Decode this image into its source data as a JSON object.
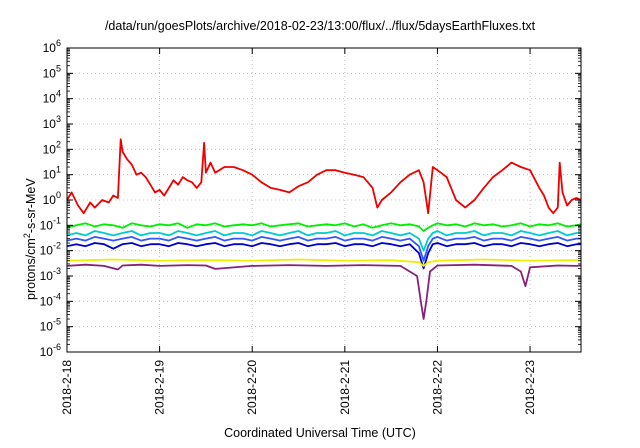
{
  "chart_data": {
    "type": "line",
    "title": "/data/run/goesPlots/archive/2018-02-23/13:00/flux/../flux/5daysEarthFluxes.txt",
    "xlabel": "Coordinated Universal Time (UTC)",
    "ylabel": {
      "prefix": "protons/cm",
      "sup": "2",
      "suffix": "-s-sr-MeV"
    },
    "x_ticks": [
      "2018-2-18",
      "2018-2-19",
      "2018-2-20",
      "2018-2-21",
      "2018-2-22",
      "2018-2-23"
    ],
    "x_range_days": [
      0,
      5.55
    ],
    "y_scale": "log",
    "ylim": [
      1e-06,
      1000000.0
    ],
    "y_ticks": [
      {
        "base": "10",
        "exp": "-6"
      },
      {
        "base": "10",
        "exp": "-5"
      },
      {
        "base": "10",
        "exp": "-4"
      },
      {
        "base": "10",
        "exp": "-3"
      },
      {
        "base": "10",
        "exp": "-2"
      },
      {
        "base": "10",
        "exp": "-1"
      },
      {
        "base": "10",
        "exp": "0"
      },
      {
        "base": "10",
        "exp": "1"
      },
      {
        "base": "10",
        "exp": "2"
      },
      {
        "base": "10",
        "exp": "3"
      },
      {
        "base": "10",
        "exp": "4"
      },
      {
        "base": "10",
        "exp": "5"
      },
      {
        "base": "10",
        "exp": "6"
      }
    ],
    "grid": true,
    "series": [
      {
        "color": "#ee0000",
        "x": [
          0,
          0.05,
          0.12,
          0.18,
          0.25,
          0.3,
          0.38,
          0.45,
          0.5,
          0.55,
          0.58,
          0.6,
          0.65,
          0.7,
          0.75,
          0.8,
          0.85,
          0.9,
          0.95,
          1.0,
          1.05,
          1.1,
          1.15,
          1.2,
          1.25,
          1.3,
          1.35,
          1.4,
          1.45,
          1.48,
          1.5,
          1.55,
          1.6,
          1.7,
          1.8,
          1.9,
          2.0,
          2.1,
          2.2,
          2.3,
          2.4,
          2.5,
          2.6,
          2.7,
          2.8,
          2.9,
          3.0,
          3.1,
          3.2,
          3.3,
          3.35,
          3.4,
          3.5,
          3.6,
          3.7,
          3.8,
          3.85,
          3.9,
          3.95,
          4.0,
          4.1,
          4.2,
          4.3,
          4.4,
          4.5,
          4.6,
          4.7,
          4.8,
          4.9,
          5.0,
          5.1,
          5.15,
          5.2,
          5.25,
          5.3,
          5.32,
          5.35,
          5.4,
          5.45,
          5.5,
          5.55
        ],
        "y": [
          1,
          2,
          0.6,
          0.3,
          0.8,
          0.5,
          1.0,
          0.8,
          1.5,
          1.2,
          250,
          80,
          40,
          25,
          10,
          12,
          8,
          4,
          2,
          2.5,
          1.5,
          3,
          6,
          4,
          8,
          6,
          5,
          3,
          5,
          180,
          12,
          30,
          12,
          20,
          20,
          15,
          10,
          5,
          3,
          2.5,
          2,
          3.5,
          5,
          10,
          15,
          15,
          12,
          10,
          8,
          3,
          0.5,
          1,
          2,
          5,
          10,
          15,
          5,
          0.3,
          20,
          15,
          8,
          1,
          0.5,
          1,
          3,
          8,
          15,
          30,
          20,
          15,
          3,
          1.5,
          0.5,
          0.3,
          0.5,
          30,
          2,
          0.6,
          1,
          1.2,
          1
        ]
      },
      {
        "color": "#00ee00",
        "x": [
          0,
          0.1,
          0.2,
          0.3,
          0.4,
          0.5,
          0.6,
          0.7,
          0.8,
          0.9,
          1.0,
          1.1,
          1.2,
          1.3,
          1.4,
          1.5,
          1.6,
          1.7,
          1.8,
          1.9,
          2.0,
          2.1,
          2.2,
          2.3,
          2.4,
          2.5,
          2.6,
          2.7,
          2.8,
          2.9,
          3.0,
          3.1,
          3.2,
          3.3,
          3.4,
          3.5,
          3.6,
          3.7,
          3.8,
          3.85,
          3.9,
          3.95,
          4.0,
          4.1,
          4.2,
          4.3,
          4.4,
          4.5,
          4.6,
          4.7,
          4.8,
          4.9,
          5.0,
          5.1,
          5.2,
          5.3,
          5.4,
          5.5,
          5.55
        ],
        "y": [
          0.08,
          0.1,
          0.12,
          0.09,
          0.11,
          0.1,
          0.08,
          0.12,
          0.1,
          0.09,
          0.11,
          0.1,
          0.12,
          0.08,
          0.11,
          0.1,
          0.12,
          0.09,
          0.1,
          0.11,
          0.1,
          0.12,
          0.09,
          0.1,
          0.11,
          0.12,
          0.09,
          0.1,
          0.11,
          0.1,
          0.12,
          0.09,
          0.11,
          0.08,
          0.1,
          0.12,
          0.1,
          0.11,
          0.09,
          0.06,
          0.08,
          0.1,
          0.12,
          0.1,
          0.11,
          0.09,
          0.12,
          0.1,
          0.11,
          0.09,
          0.1,
          0.12,
          0.09,
          0.11,
          0.1,
          0.12,
          0.09,
          0.1,
          0.11
        ]
      },
      {
        "color": "#00cccc",
        "x": [
          0,
          0.1,
          0.2,
          0.3,
          0.4,
          0.5,
          0.6,
          0.7,
          0.8,
          0.9,
          1.0,
          1.1,
          1.2,
          1.3,
          1.4,
          1.5,
          1.6,
          1.7,
          1.8,
          1.9,
          2.0,
          2.1,
          2.2,
          2.3,
          2.4,
          2.5,
          2.6,
          2.7,
          2.8,
          2.9,
          3.0,
          3.1,
          3.2,
          3.3,
          3.4,
          3.5,
          3.6,
          3.7,
          3.8,
          3.85,
          3.9,
          3.95,
          4.0,
          4.1,
          4.2,
          4.3,
          4.4,
          4.5,
          4.6,
          4.7,
          4.8,
          4.9,
          5.0,
          5.1,
          5.2,
          5.3,
          5.4,
          5.5,
          5.55
        ],
        "y": [
          0.04,
          0.05,
          0.04,
          0.06,
          0.05,
          0.04,
          0.05,
          0.06,
          0.04,
          0.05,
          0.05,
          0.04,
          0.06,
          0.05,
          0.04,
          0.05,
          0.06,
          0.04,
          0.05,
          0.05,
          0.04,
          0.06,
          0.05,
          0.04,
          0.05,
          0.06,
          0.04,
          0.05,
          0.05,
          0.06,
          0.04,
          0.05,
          0.05,
          0.04,
          0.06,
          0.05,
          0.04,
          0.05,
          0.03,
          0.01,
          0.03,
          0.05,
          0.06,
          0.04,
          0.05,
          0.05,
          0.06,
          0.04,
          0.05,
          0.05,
          0.04,
          0.06,
          0.05,
          0.04,
          0.05,
          0.06,
          0.04,
          0.05,
          0.05
        ]
      },
      {
        "color": "#3355ff",
        "x": [
          0,
          0.1,
          0.2,
          0.3,
          0.4,
          0.5,
          0.6,
          0.7,
          0.8,
          0.9,
          1.0,
          1.1,
          1.2,
          1.3,
          1.4,
          1.5,
          1.6,
          1.7,
          1.8,
          1.9,
          2.0,
          2.1,
          2.2,
          2.3,
          2.4,
          2.5,
          2.6,
          2.7,
          2.8,
          2.9,
          3.0,
          3.1,
          3.2,
          3.3,
          3.4,
          3.5,
          3.6,
          3.7,
          3.8,
          3.85,
          3.9,
          3.95,
          4.0,
          4.1,
          4.2,
          4.3,
          4.4,
          4.5,
          4.6,
          4.7,
          4.8,
          4.9,
          5.0,
          5.1,
          5.2,
          5.3,
          5.4,
          5.5,
          5.55
        ],
        "y": [
          0.025,
          0.03,
          0.025,
          0.035,
          0.03,
          0.025,
          0.03,
          0.035,
          0.025,
          0.03,
          0.03,
          0.025,
          0.035,
          0.03,
          0.025,
          0.03,
          0.035,
          0.025,
          0.03,
          0.03,
          0.025,
          0.035,
          0.03,
          0.025,
          0.03,
          0.035,
          0.025,
          0.03,
          0.03,
          0.035,
          0.025,
          0.03,
          0.03,
          0.025,
          0.035,
          0.03,
          0.025,
          0.03,
          0.015,
          0.004,
          0.015,
          0.03,
          0.035,
          0.025,
          0.03,
          0.03,
          0.035,
          0.025,
          0.03,
          0.03,
          0.025,
          0.035,
          0.03,
          0.025,
          0.03,
          0.035,
          0.025,
          0.03,
          0.03
        ]
      },
      {
        "color": "#0000cc",
        "x": [
          0,
          0.1,
          0.2,
          0.3,
          0.4,
          0.5,
          0.6,
          0.7,
          0.8,
          0.9,
          1.0,
          1.1,
          1.2,
          1.3,
          1.4,
          1.5,
          1.6,
          1.7,
          1.8,
          1.9,
          2.0,
          2.1,
          2.2,
          2.3,
          2.4,
          2.5,
          2.6,
          2.7,
          2.8,
          2.9,
          3.0,
          3.1,
          3.2,
          3.3,
          3.4,
          3.5,
          3.6,
          3.7,
          3.8,
          3.85,
          3.9,
          3.95,
          4.0,
          4.1,
          4.2,
          4.3,
          4.4,
          4.5,
          4.6,
          4.7,
          4.8,
          4.9,
          5.0,
          5.1,
          5.2,
          5.3,
          5.4,
          5.5,
          5.55
        ],
        "y": [
          0.015,
          0.018,
          0.015,
          0.02,
          0.018,
          0.012,
          0.018,
          0.02,
          0.015,
          0.018,
          0.018,
          0.015,
          0.02,
          0.018,
          0.015,
          0.018,
          0.02,
          0.015,
          0.018,
          0.018,
          0.015,
          0.02,
          0.018,
          0.015,
          0.018,
          0.02,
          0.015,
          0.018,
          0.018,
          0.02,
          0.015,
          0.018,
          0.018,
          0.015,
          0.02,
          0.018,
          0.015,
          0.018,
          0.008,
          0.002,
          0.008,
          0.018,
          0.02,
          0.015,
          0.018,
          0.018,
          0.02,
          0.015,
          0.018,
          0.018,
          0.015,
          0.02,
          0.018,
          0.015,
          0.018,
          0.02,
          0.015,
          0.018,
          0.018
        ]
      },
      {
        "color": "#eeee00",
        "x": [
          0,
          0.5,
          1.0,
          1.5,
          2.0,
          2.5,
          3.0,
          3.5,
          3.8,
          3.85,
          3.9,
          4.0,
          4.5,
          5.0,
          5.5,
          5.55
        ],
        "y": [
          0.004,
          0.0045,
          0.004,
          0.0042,
          0.004,
          0.0045,
          0.004,
          0.0042,
          0.0035,
          0.0025,
          0.0035,
          0.004,
          0.0045,
          0.004,
          0.0042,
          0.004
        ]
      },
      {
        "color": "#882277",
        "x": [
          0,
          0.2,
          0.4,
          0.55,
          0.6,
          0.8,
          1.0,
          1.3,
          1.5,
          1.6,
          2.0,
          2.4,
          2.8,
          3.2,
          3.6,
          3.78,
          3.82,
          3.85,
          3.88,
          3.92,
          4.0,
          4.4,
          4.8,
          4.9,
          4.95,
          5.0,
          5.3,
          5.5,
          5.55
        ],
        "y": [
          0.0025,
          0.0028,
          0.0025,
          0.0018,
          0.0026,
          0.0028,
          0.0025,
          0.0027,
          0.0026,
          0.0019,
          0.0025,
          0.0027,
          0.0025,
          0.0027,
          0.0025,
          0.001,
          0.0001,
          2e-05,
          0.0001,
          0.0015,
          0.0026,
          0.0028,
          0.0025,
          0.0015,
          0.0004,
          0.0022,
          0.0026,
          0.0025,
          0.0026
        ]
      }
    ]
  }
}
